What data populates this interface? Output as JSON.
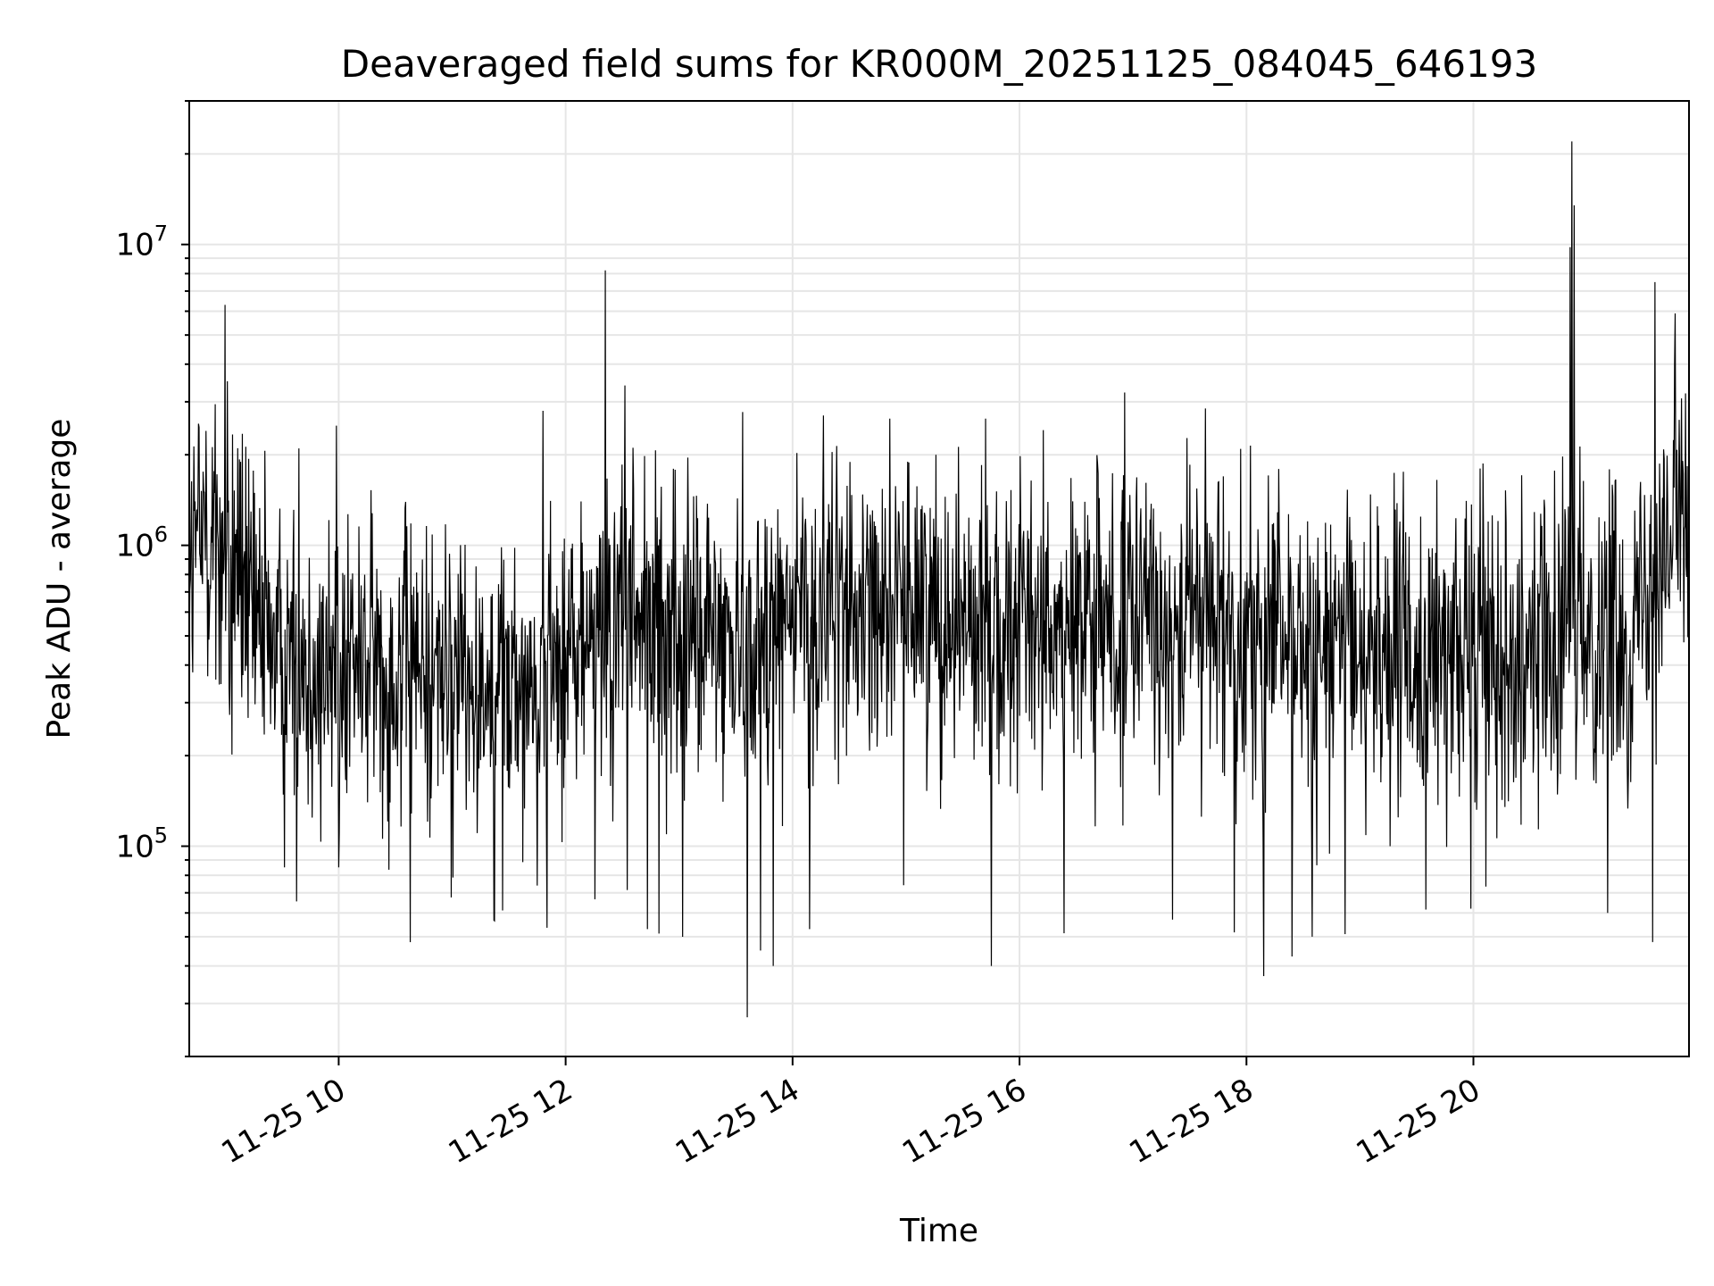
{
  "chart_data": {
    "type": "line",
    "title": "Deaveraged field sums for KR000M_20251125_084045_646193",
    "xlabel": "Time",
    "ylabel": "Peak ADU - average",
    "yscale": "log",
    "ylim": [
      20000,
      30000000
    ],
    "xlim_hours": [
      8.683,
      21.9
    ],
    "x_ticks": [
      {
        "value": 10,
        "label": "11-25 10"
      },
      {
        "value": 12,
        "label": "11-25 12"
      },
      {
        "value": 14,
        "label": "11-25 14"
      },
      {
        "value": 16,
        "label": "11-25 16"
      },
      {
        "value": 18,
        "label": "11-25 18"
      },
      {
        "value": 20,
        "label": "11-25 20"
      }
    ],
    "y_ticks": [
      {
        "value": 100000,
        "base": "10",
        "exp": "5"
      },
      {
        "value": 1000000,
        "base": "10",
        "exp": "6"
      },
      {
        "value": 10000000,
        "base": "10",
        "exp": "7"
      }
    ],
    "grid": true,
    "line_color": "#000000",
    "grid_color": "#e6e6e6",
    "series": [
      {
        "name": "Peak ADU - average",
        "baseline": [
          [
            8.683,
            900000
          ],
          [
            8.9,
            1200000
          ],
          [
            9.05,
            1000000
          ],
          [
            9.3,
            550000
          ],
          [
            9.8,
            400000
          ],
          [
            10.3,
            420000
          ],
          [
            10.8,
            380000
          ],
          [
            11.3,
            380000
          ],
          [
            11.8,
            400000
          ],
          [
            12.2,
            450000
          ],
          [
            12.6,
            600000
          ],
          [
            13.0,
            520000
          ],
          [
            13.5,
            500000
          ],
          [
            14.0,
            600000
          ],
          [
            14.5,
            650000
          ],
          [
            15.0,
            700000
          ],
          [
            15.5,
            620000
          ],
          [
            16.0,
            560000
          ],
          [
            16.5,
            520000
          ],
          [
            17.0,
            580000
          ],
          [
            17.5,
            620000
          ],
          [
            18.0,
            540000
          ],
          [
            18.5,
            500000
          ],
          [
            19.0,
            480000
          ],
          [
            19.5,
            440000
          ],
          [
            20.0,
            470000
          ],
          [
            20.5,
            520000
          ],
          [
            21.0,
            560000
          ],
          [
            21.4,
            520000
          ],
          [
            21.6,
            1000000
          ],
          [
            21.9,
            1200000
          ]
        ],
        "peaks": [
          [
            8.83,
            2400000
          ],
          [
            9.0,
            6300000
          ],
          [
            9.65,
            2100000
          ],
          [
            9.98,
            2500000
          ],
          [
            11.8,
            2800000
          ],
          [
            12.35,
            8200000
          ],
          [
            12.52,
            3400000
          ],
          [
            14.27,
            2700000
          ],
          [
            20.85,
            9800000
          ],
          [
            20.87,
            22000000
          ],
          [
            20.89,
            13500000
          ],
          [
            21.6,
            7500000
          ],
          [
            21.78,
            5900000
          ],
          [
            21.87,
            3200000
          ]
        ],
        "dips": [
          [
            9.52,
            85000
          ],
          [
            10.0,
            85000
          ],
          [
            11.75,
            74000
          ],
          [
            12.72,
            53000
          ],
          [
            13.03,
            50000
          ],
          [
            13.6,
            27000
          ],
          [
            13.72,
            45000
          ],
          [
            13.83,
            40000
          ],
          [
            14.15,
            53000
          ],
          [
            15.75,
            40000
          ],
          [
            17.35,
            57000
          ],
          [
            18.15,
            37000
          ],
          [
            18.4,
            43000
          ],
          [
            18.87,
            51000
          ],
          [
            19.98,
            62000
          ],
          [
            21.58,
            48000
          ]
        ],
        "noise_log10_amplitude": 0.25,
        "n_samples": 2600
      }
    ]
  }
}
